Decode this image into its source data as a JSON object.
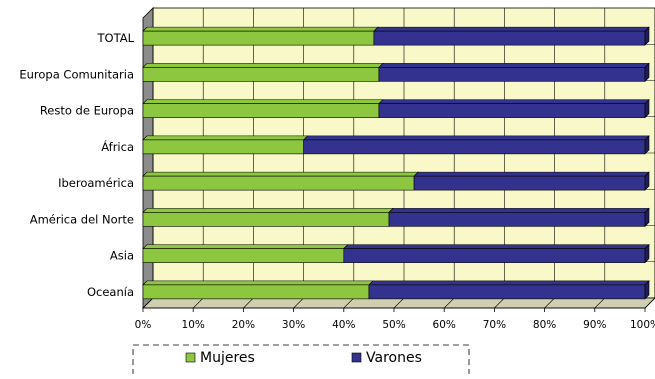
{
  "chart_data": {
    "type": "bar",
    "orientation": "horizontal",
    "stacked": "percent",
    "categories": [
      "TOTAL",
      "Europa Comunitaria",
      "Resto de Europa",
      "África",
      "Iberoamérica",
      "América del Norte",
      "Asia",
      "Oceanía"
    ],
    "series": [
      {
        "name": "Mujeres",
        "color": "#8dc63f",
        "values": [
          46,
          47,
          47,
          32,
          54,
          49,
          40,
          45
        ]
      },
      {
        "name": "Varones",
        "color": "#33338f",
        "values": [
          54,
          53,
          53,
          68,
          46,
          51,
          60,
          55
        ]
      }
    ],
    "xticks": [
      "0%",
      "10%",
      "20%",
      "30%",
      "40%",
      "50%",
      "60%",
      "70%",
      "80%",
      "90%",
      "100%"
    ],
    "xlim": [
      0,
      100
    ],
    "grid": true,
    "plot_background": "#f8f8c8",
    "legend_position": "bottom"
  }
}
